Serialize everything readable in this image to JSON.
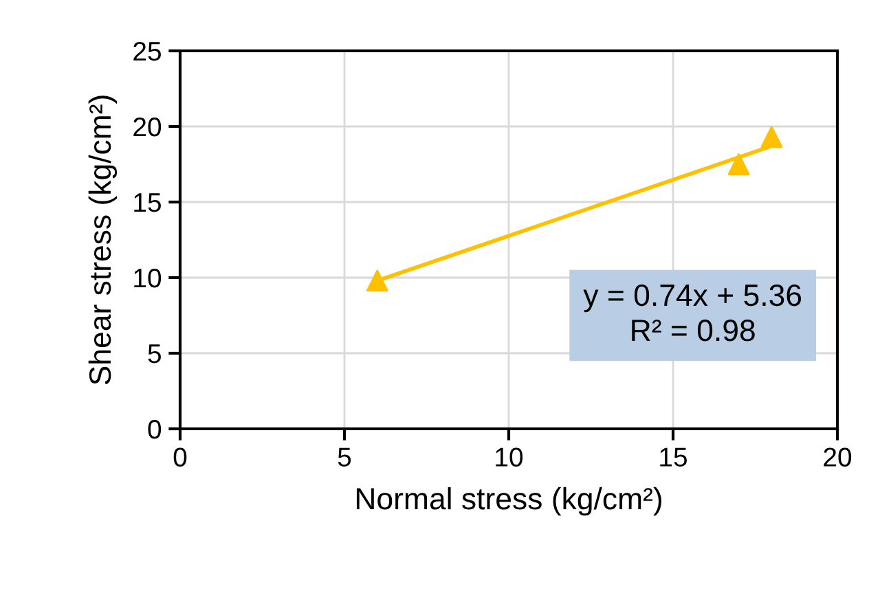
{
  "chart_data": {
    "type": "scatter",
    "xlabel": "Normal stress (kg/cm²)",
    "ylabel": "Shear stress (kg/cm²)",
    "xlim": [
      0,
      20
    ],
    "xticks": [
      0,
      5,
      10,
      15,
      20
    ],
    "ylim": [
      0,
      25
    ],
    "yticks": [
      0,
      5,
      10,
      15,
      20,
      25
    ],
    "grid": true,
    "marker": "triangle",
    "series": [
      {
        "color": "#ffc000",
        "x": [
          6,
          17,
          18
        ],
        "values": [
          9.8,
          17.5,
          19.3
        ]
      },
      {
        "type": "line",
        "color": "#ffc000",
        "x": [
          6,
          18
        ],
        "values": [
          9.8,
          18.7
        ],
        "marker": "none"
      }
    ],
    "annotations": [
      "y = 0.74x + 5.36\nR² = 0.98"
    ]
  }
}
